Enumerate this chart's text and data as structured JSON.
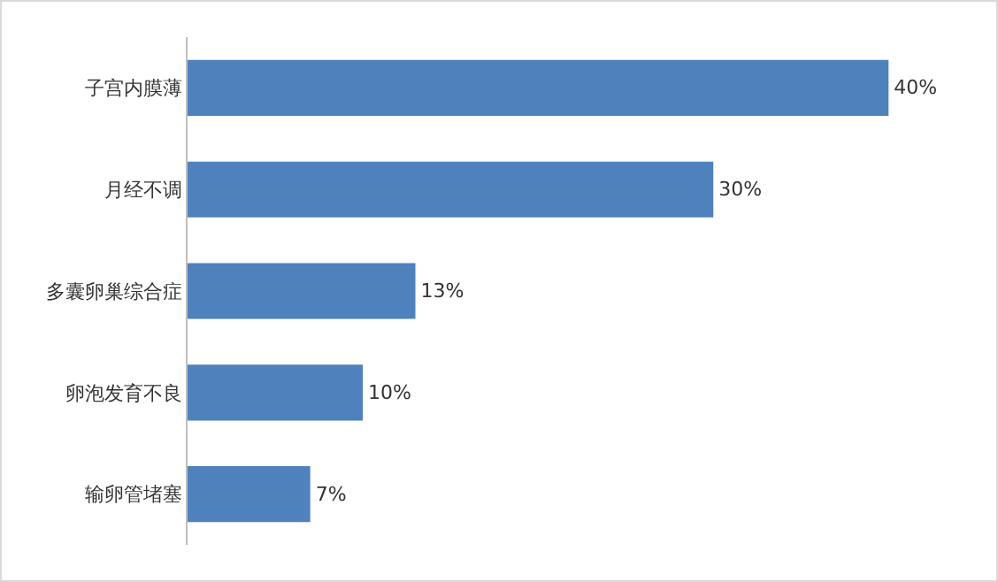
{
  "chart_data": {
    "type": "bar",
    "orientation": "horizontal",
    "categories": [
      "子宫内膜薄",
      "月经不调",
      "多囊卵巢综合症",
      "卵泡发育不良",
      "输卵管堵塞"
    ],
    "values": [
      40,
      30,
      13,
      10,
      7
    ],
    "value_labels": [
      "40%",
      "30%",
      "13%",
      "10%",
      "7%"
    ],
    "color": "#4f81bd"
  }
}
